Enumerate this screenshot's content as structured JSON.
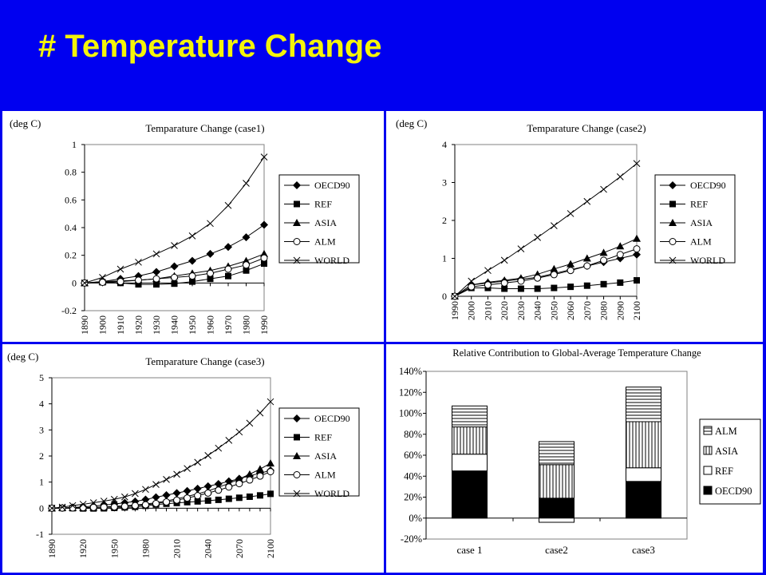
{
  "slide": {
    "title": "# Temperature Change"
  },
  "chart_data": [
    {
      "type": "line",
      "title": "Temparature Change (case1)",
      "unit_label": "(deg C)",
      "x": [
        "1890",
        "1900",
        "1910",
        "1920",
        "1930",
        "1940",
        "1950",
        "1960",
        "1970",
        "1980",
        "1990"
      ],
      "yticks": [
        "1",
        "0.8",
        "0.6",
        "0.4",
        "0.2",
        "0",
        "-0.2"
      ],
      "ylim": [
        -0.2,
        1
      ],
      "grid": false,
      "legend_position": "right",
      "series": [
        {
          "name": "OECD90",
          "marker": "diamond",
          "values": [
            0,
            0.01,
            0.03,
            0.05,
            0.08,
            0.12,
            0.16,
            0.21,
            0.26,
            0.33,
            0.42
          ]
        },
        {
          "name": "REF",
          "marker": "square",
          "values": [
            0,
            0.005,
            0,
            -0.01,
            -0.01,
            -0.005,
            0.01,
            0.03,
            0.05,
            0.09,
            0.14
          ]
        },
        {
          "name": "ASIA",
          "marker": "triangle",
          "values": [
            0,
            0.01,
            0.015,
            0.02,
            0.03,
            0.05,
            0.07,
            0.09,
            0.12,
            0.16,
            0.21
          ]
        },
        {
          "name": "ALM",
          "marker": "circle",
          "values": [
            0,
            0.005,
            0.01,
            0.02,
            0.03,
            0.04,
            0.05,
            0.07,
            0.1,
            0.13,
            0.18
          ]
        },
        {
          "name": "WORLD",
          "marker": "x",
          "values": [
            0,
            0.04,
            0.1,
            0.15,
            0.21,
            0.27,
            0.34,
            0.43,
            0.56,
            0.72,
            0.91
          ]
        }
      ]
    },
    {
      "type": "line",
      "title": "Temparature Change (case2)",
      "unit_label": "(deg C)",
      "x": [
        "1990",
        "2000",
        "2010",
        "2020",
        "2030",
        "2040",
        "2050",
        "2060",
        "2070",
        "2080",
        "2090",
        "2100"
      ],
      "yticks": [
        "4",
        "3",
        "2",
        "1",
        "0"
      ],
      "ylim": [
        0,
        4
      ],
      "grid": false,
      "legend_position": "right",
      "series": [
        {
          "name": "OECD90",
          "marker": "diamond",
          "values": [
            0,
            0.3,
            0.35,
            0.4,
            0.45,
            0.5,
            0.6,
            0.7,
            0.8,
            0.9,
            1.0,
            1.1
          ]
        },
        {
          "name": "REF",
          "marker": "square",
          "values": [
            0,
            0.22,
            0.22,
            0.2,
            0.2,
            0.2,
            0.22,
            0.25,
            0.28,
            0.32,
            0.36,
            0.42
          ]
        },
        {
          "name": "ASIA",
          "marker": "triangle",
          "values": [
            0,
            0.3,
            0.37,
            0.42,
            0.48,
            0.58,
            0.72,
            0.85,
            1.0,
            1.15,
            1.32,
            1.52
          ]
        },
        {
          "name": "ALM",
          "marker": "circle",
          "values": [
            0,
            0.25,
            0.3,
            0.35,
            0.4,
            0.48,
            0.57,
            0.68,
            0.8,
            0.95,
            1.1,
            1.25
          ]
        },
        {
          "name": "WORLD",
          "marker": "x",
          "values": [
            0,
            0.4,
            0.68,
            0.95,
            1.25,
            1.55,
            1.86,
            2.18,
            2.5,
            2.82,
            3.15,
            3.5
          ]
        }
      ]
    },
    {
      "type": "line",
      "title": "Temparature Change (case3)",
      "unit_label": "(deg C)",
      "x": [
        "1890",
        "1900",
        "1910",
        "1920",
        "1930",
        "1940",
        "1950",
        "1960",
        "1970",
        "1980",
        "1990",
        "2000",
        "2010",
        "2020",
        "2030",
        "2040",
        "2050",
        "2060",
        "2070",
        "2080",
        "2090",
        "2100"
      ],
      "xticks": [
        "1890",
        "1920",
        "1950",
        "1980",
        "2010",
        "2040",
        "2070",
        "2100"
      ],
      "yticks": [
        "5",
        "4",
        "3",
        "2",
        "1",
        "0",
        "-1"
      ],
      "ylim": [
        -1,
        5
      ],
      "grid": false,
      "legend_position": "right",
      "series": [
        {
          "name": "OECD90",
          "marker": "diamond",
          "values": [
            0,
            0.01,
            0.03,
            0.05,
            0.08,
            0.12,
            0.16,
            0.21,
            0.26,
            0.33,
            0.42,
            0.5,
            0.58,
            0.66,
            0.75,
            0.84,
            0.93,
            1.03,
            1.13,
            1.24,
            1.34,
            1.45
          ]
        },
        {
          "name": "REF",
          "marker": "square",
          "values": [
            0,
            0.005,
            0,
            -0.01,
            -0.01,
            -0.005,
            0.01,
            0.03,
            0.05,
            0.09,
            0.14,
            0.17,
            0.2,
            0.23,
            0.26,
            0.29,
            0.32,
            0.36,
            0.4,
            0.44,
            0.49,
            0.55
          ]
        },
        {
          "name": "ASIA",
          "marker": "triangle",
          "values": [
            0,
            0.01,
            0.015,
            0.02,
            0.03,
            0.05,
            0.07,
            0.09,
            0.12,
            0.16,
            0.21,
            0.28,
            0.36,
            0.45,
            0.55,
            0.66,
            0.8,
            0.95,
            1.12,
            1.3,
            1.5,
            1.72
          ]
        },
        {
          "name": "ALM",
          "marker": "circle",
          "values": [
            0,
            0.005,
            0.01,
            0.02,
            0.03,
            0.04,
            0.05,
            0.07,
            0.1,
            0.13,
            0.18,
            0.24,
            0.31,
            0.39,
            0.48,
            0.58,
            0.69,
            0.81,
            0.94,
            1.08,
            1.23,
            1.4
          ]
        },
        {
          "name": "WORLD",
          "marker": "x",
          "values": [
            0,
            0.04,
            0.1,
            0.15,
            0.21,
            0.27,
            0.34,
            0.43,
            0.56,
            0.72,
            0.91,
            1.1,
            1.3,
            1.52,
            1.76,
            2.02,
            2.3,
            2.6,
            2.92,
            3.26,
            3.65,
            4.08
          ]
        }
      ]
    },
    {
      "type": "bar",
      "stacked": true,
      "title": "Relative Contribution to Global-Average Temperature Change",
      "categories": [
        "case 1",
        "case2",
        "case3"
      ],
      "yticks": [
        "140%",
        "120%",
        "100%",
        "80%",
        "60%",
        "40%",
        "20%",
        "0%",
        "-20%"
      ],
      "ylim": [
        -20,
        140
      ],
      "grid": false,
      "legend_position": "right",
      "series": [
        {
          "name": "OECD90",
          "pattern": "solid-black",
          "values": [
            45,
            19,
            35
          ]
        },
        {
          "name": "REF",
          "pattern": "white",
          "values": [
            16,
            -4,
            13
          ]
        },
        {
          "name": "ASIA",
          "pattern": "vertical-lines",
          "values": [
            26,
            32,
            44
          ]
        },
        {
          "name": "ALM",
          "pattern": "horizontal-lines",
          "values": [
            20,
            22,
            33
          ]
        }
      ],
      "legend_order": [
        "ALM",
        "ASIA",
        "REF",
        "OECD90"
      ]
    }
  ]
}
